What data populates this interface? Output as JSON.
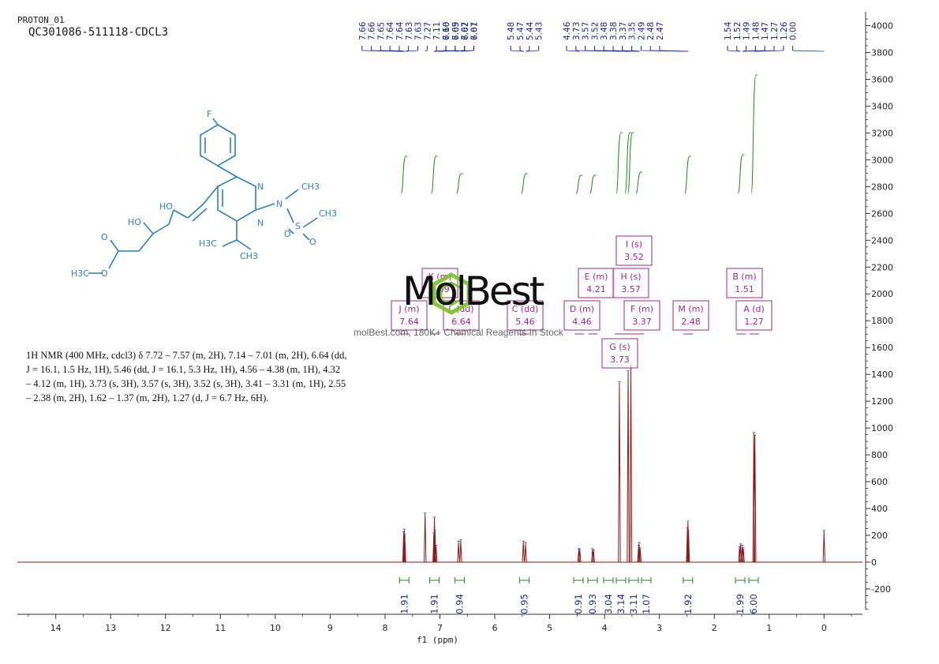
{
  "header": {
    "line1": "PROTON_01",
    "line2": "QC301086-511118-CDCL3"
  },
  "summary": {
    "line1": "1H NMR (400 MHz, cdcl3) δ 7.72 – 7.57 (m, 2H), 7.14 – 7.01 (m, 2H), 6.64 (dd,",
    "line2": "J = 16.1, 1.5 Hz, 1H), 5.46 (dd, J = 16.1, 5.3 Hz, 1H), 4.56 – 4.38 (m, 1H), 4.32",
    "line3": "– 4.12 (m, 1H), 3.73 (s, 3H), 3.57 (s, 3H), 3.52 (s, 3H), 3.41 – 3.31 (m, 1H), 2.55",
    "line4": "– 2.38 (m, 2H), 1.62 – 1.37 (m, 2H), 1.27 (d, J = 6.7 Hz, 6H)."
  },
  "watermark": {
    "brand": "MolBest",
    "tagline": "molBest.com, 180K+ Chemical Reagents In Stock"
  },
  "structure_labels": {
    "f": "F",
    "n1": "N",
    "n2": "N",
    "n3": "N",
    "ch3_n": "CH3",
    "ch3_s": "CH3",
    "s": "S",
    "o1": "O",
    "o2": "O",
    "ho1": "HO",
    "ho2": "HO",
    "h3c1": "H3C",
    "ch3_ipr": "CH3",
    "o_ester1": "O",
    "o_ester2": "O",
    "h3c_ester": "H3C"
  },
  "colors": {
    "spectrum": "#8b1a1a",
    "integral": "#1f8a1f",
    "peak_label": "#1c2a8a",
    "multiplet": "#9b2a8f",
    "structure": "#2f7fb8",
    "logo": "#7dc12d"
  },
  "chart_data": {
    "type": "line",
    "xlabel": "f1 (ppm)",
    "xlim": [
      14.7,
      -0.7
    ],
    "x_ticks": [
      14,
      13,
      12,
      11,
      10,
      9,
      8,
      7,
      6,
      5,
      4,
      3,
      2,
      1,
      0
    ],
    "ylim": [
      -350,
      4050
    ],
    "y_ticks": [
      4000,
      3800,
      3600,
      3400,
      3200,
      3000,
      2800,
      2600,
      2400,
      2200,
      2000,
      1800,
      1600,
      1400,
      1200,
      1000,
      800,
      600,
      400,
      200,
      0,
      -200
    ],
    "peaks": [
      {
        "ppm": 7.66,
        "h": 220
      },
      {
        "ppm": 7.65,
        "h": 240
      },
      {
        "ppm": 7.64,
        "h": 200
      },
      {
        "ppm": 7.27,
        "h": 360
      },
      {
        "ppm": 7.11,
        "h": 210
      },
      {
        "ppm": 7.1,
        "h": 330
      },
      {
        "ppm": 7.09,
        "h": 230
      },
      {
        "ppm": 7.07,
        "h": 120
      },
      {
        "ppm": 6.66,
        "h": 150
      },
      {
        "ppm": 6.62,
        "h": 160
      },
      {
        "ppm": 5.48,
        "h": 150
      },
      {
        "ppm": 5.44,
        "h": 140
      },
      {
        "ppm": 4.47,
        "h": 95
      },
      {
        "ppm": 4.45,
        "h": 90
      },
      {
        "ppm": 4.22,
        "h": 95
      },
      {
        "ppm": 4.2,
        "h": 85
      },
      {
        "ppm": 3.73,
        "h": 1340
      },
      {
        "ppm": 3.57,
        "h": 1420
      },
      {
        "ppm": 3.52,
        "h": 1460
      },
      {
        "ppm": 3.38,
        "h": 120
      },
      {
        "ppm": 3.37,
        "h": 140
      },
      {
        "ppm": 3.35,
        "h": 100
      },
      {
        "ppm": 2.49,
        "h": 250
      },
      {
        "ppm": 2.48,
        "h": 300
      },
      {
        "ppm": 2.47,
        "h": 230
      },
      {
        "ppm": 1.54,
        "h": 110
      },
      {
        "ppm": 1.52,
        "h": 130
      },
      {
        "ppm": 1.49,
        "h": 120
      },
      {
        "ppm": 1.47,
        "h": 100
      },
      {
        "ppm": 1.28,
        "h": 960
      },
      {
        "ppm": 1.26,
        "h": 940
      },
      {
        "ppm": 0.0,
        "h": 230
      }
    ],
    "peak_labels": {
      "groups": [
        {
          "labels": [
            "7.66",
            "7.66",
            "7.65",
            "7.64",
            "7.64",
            "7.63",
            "7.63",
            "7.27",
            "7.11",
            "7.10",
            "7.09",
            "7.07",
            "7.07"
          ],
          "ppm": [
            7.66,
            7.66,
            7.65,
            7.64,
            7.64,
            7.63,
            7.63,
            7.27,
            7.11,
            7.1,
            7.09,
            7.07,
            7.07
          ]
        },
        {
          "labels": [
            "6.66",
            "6.65",
            "6.62",
            "6.61"
          ],
          "ppm": [
            6.66,
            6.65,
            6.62,
            6.61
          ]
        },
        {
          "labels": [
            "5.48",
            "5.47",
            "5.44",
            "5.43"
          ],
          "ppm": [
            5.48,
            5.47,
            5.44,
            5.43
          ]
        },
        {
          "labels": [
            "4.46",
            "3.73",
            "3.57",
            "3.52",
            "3.48",
            "3.38",
            "3.37",
            "3.35",
            "2.49",
            "2.48",
            "2.47"
          ],
          "ppm": [
            4.46,
            3.73,
            3.57,
            3.52,
            3.48,
            3.38,
            3.37,
            3.35,
            2.49,
            2.48,
            2.47
          ]
        },
        {
          "labels": [
            "1.54",
            "1.52",
            "1.49",
            "1.48",
            "1.47",
            "1.27",
            "1.26",
            "0.00"
          ],
          "ppm": [
            1.54,
            1.52,
            1.49,
            1.48,
            1.47,
            1.27,
            1.26,
            0.0
          ]
        }
      ]
    },
    "integrals": [
      {
        "ppm": 7.65,
        "value": "1.91"
      },
      {
        "ppm": 7.1,
        "value": "1.91"
      },
      {
        "ppm": 6.64,
        "value": "0.94"
      },
      {
        "ppm": 5.46,
        "value": "0.95"
      },
      {
        "ppm": 4.46,
        "value": "0.91"
      },
      {
        "ppm": 4.21,
        "value": "0.93"
      },
      {
        "ppm": 3.73,
        "value": "3.04"
      },
      {
        "ppm": 3.57,
        "value": "3.14"
      },
      {
        "ppm": 3.52,
        "value": "3.11"
      },
      {
        "ppm": 3.37,
        "value": "1.07"
      },
      {
        "ppm": 2.48,
        "value": "1.92"
      },
      {
        "ppm": 1.51,
        "value": "1.99"
      },
      {
        "ppm": 1.27,
        "value": "6.00"
      }
    ],
    "multiplets": [
      {
        "id": "K",
        "mult": "(m)",
        "shift": "7.09"
      },
      {
        "id": "J",
        "mult": "(m)",
        "shift": "7.64"
      },
      {
        "id": "L",
        "mult": "(dd)",
        "shift": "6.64"
      },
      {
        "id": "C",
        "mult": "(dd)",
        "shift": "5.46"
      },
      {
        "id": "E",
        "mult": "(m)",
        "shift": "4.21"
      },
      {
        "id": "D",
        "mult": "(m)",
        "shift": "4.46"
      },
      {
        "id": "I",
        "mult": "(s)",
        "shift": "3.52"
      },
      {
        "id": "H",
        "mult": "(s)",
        "shift": "3.57"
      },
      {
        "id": "G",
        "mult": "(s)",
        "shift": "3.73"
      },
      {
        "id": "F",
        "mult": "(m)",
        "shift": "3.37"
      },
      {
        "id": "M",
        "mult": "(m)",
        "shift": "2.48"
      },
      {
        "id": "B",
        "mult": "(m)",
        "shift": "1.51"
      },
      {
        "id": "A",
        "mult": "(d)",
        "shift": "1.27"
      }
    ]
  }
}
